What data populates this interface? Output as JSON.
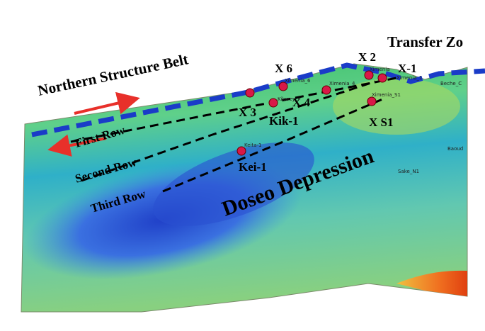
{
  "title": "Northern Structure Belt",
  "zone": "Transfer Zo",
  "depression": "Doseo Depression",
  "rows": [
    "First Row",
    "Second Row",
    "Third Row"
  ],
  "wells": [
    "X 6",
    "X 2",
    "X-1",
    "X 3",
    "X 4",
    "Kik-1",
    "X S1",
    "Kei-1"
  ],
  "small_labels": [
    "Ximenia_6",
    "Ximenia_4",
    "Ximenia_S1",
    "Ximenia",
    "Ximenia_1",
    "Kikwey",
    "Keita-1",
    "Beche_C",
    "Baoud",
    "Sake_N1"
  ]
}
